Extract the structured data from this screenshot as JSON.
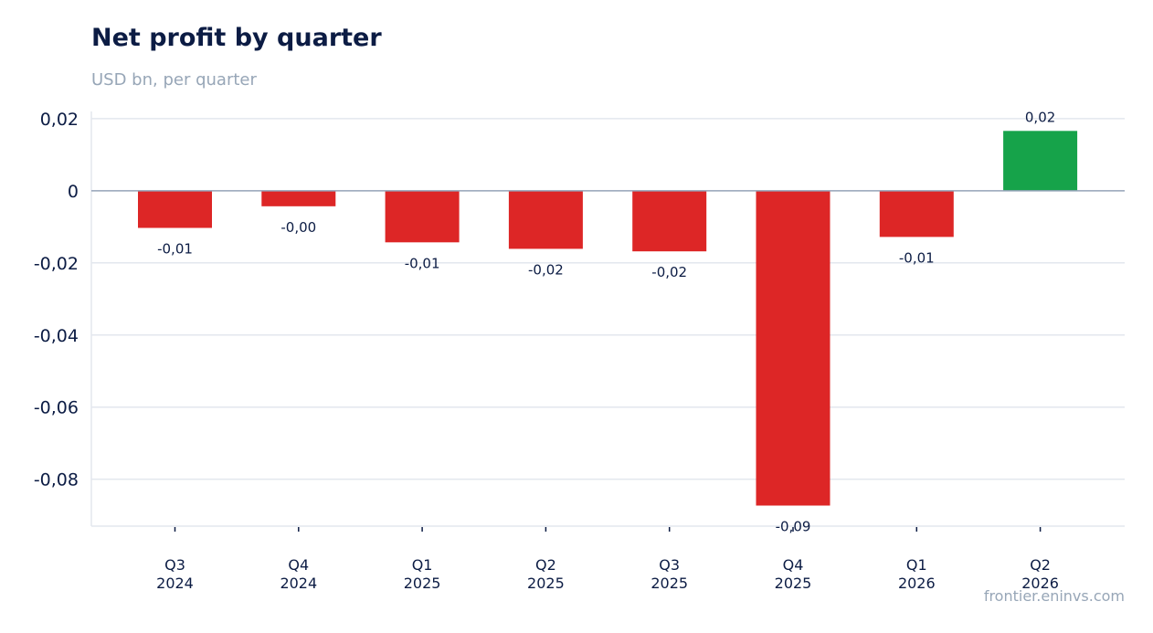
{
  "header": {
    "title": "Net profit by quarter",
    "subtitle": "USD bn, per quarter"
  },
  "footer": {
    "source": "frontier.eninvs.com"
  },
  "colors": {
    "negative": "#dd2626",
    "positive": "#16a34a",
    "gridline": "#e3e7ee",
    "zeroline": "#94a3b8",
    "text": "#0c1c44"
  },
  "chart_data": {
    "type": "bar",
    "categories": [
      [
        "Q3",
        "2024"
      ],
      [
        "Q4",
        "2024"
      ],
      [
        "Q1",
        "2025"
      ],
      [
        "Q2",
        "2025"
      ],
      [
        "Q3",
        "2025"
      ],
      [
        "Q4",
        "2025"
      ],
      [
        "Q1",
        "2026"
      ],
      [
        "Q2",
        "2026"
      ]
    ],
    "values": [
      -0.0103,
      -0.0043,
      -0.0143,
      -0.0161,
      -0.0168,
      -0.0873,
      -0.0128,
      0.0166
    ],
    "value_labels": [
      "-0,01",
      "-0,00",
      "-0,01",
      "-0,02",
      "-0,02",
      "-0,09",
      "-0,01",
      "0,02"
    ],
    "title": "Net profit by quarter",
    "subtitle": "USD bn, per quarter",
    "xlabel": "",
    "ylabel": "",
    "ylim": [
      -0.093,
      0.022
    ],
    "yticks": [
      0.02,
      0,
      -0.02,
      -0.04,
      -0.06,
      -0.08
    ],
    "ytick_labels": [
      "0,02",
      "0",
      "-0,02",
      "-0,04",
      "-0,06",
      "-0,08"
    ],
    "grid": true,
    "legend": "none"
  }
}
